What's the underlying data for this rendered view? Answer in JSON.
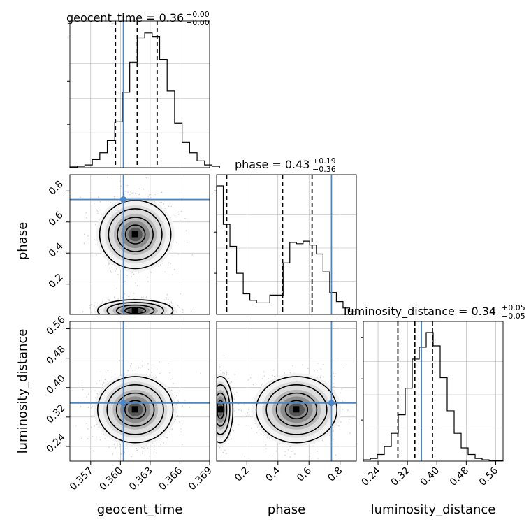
{
  "chart_data": {
    "type": "corner",
    "parameters": [
      "geocent_time",
      "phase",
      "luminosity_distance"
    ],
    "truth": {
      "geocent_time": 0.3603,
      "phase": 0.745,
      "luminosity_distance": 0.358
    },
    "colors": {
      "truth": "#4c86c6",
      "hist": "#000000",
      "grid": "#b0b0b0",
      "scatter": "#b3b3b3"
    },
    "grid": true,
    "titles": [
      {
        "param": "geocent_time",
        "main": "geocent_time = 0.36",
        "sup": "+0.00",
        "sub": "−0.00"
      },
      {
        "param": "phase",
        "main": "phase = 0.43",
        "sup": "+0.19",
        "sub": "−0.36"
      },
      {
        "param": "luminosity_distance",
        "main": "luminosity_distance = 0.34",
        "sup": "+0.05",
        "sub": "−0.05"
      }
    ],
    "axis_labels": {
      "x": [
        "geocent_time",
        "phase",
        "luminosity_distance"
      ],
      "y": [
        "phase",
        "luminosity_distance"
      ]
    },
    "ranges": {
      "geocent_time": [
        0.3549,
        0.369
      ],
      "phase": [
        0.005,
        0.905
      ],
      "luminosity_distance": [
        0.2,
        0.58
      ]
    },
    "ticks": {
      "geocent_time": [
        "0.357",
        "0.360",
        "0.363",
        "0.366",
        "0.369"
      ],
      "phase": [
        "0.2",
        "0.4",
        "0.6",
        "0.8"
      ],
      "luminosity_distance": [
        "0.24",
        "0.32",
        "0.40",
        "0.48",
        "0.56"
      ]
    },
    "quantiles": {
      "geocent_time": [
        0.3595,
        0.3617,
        0.3637
      ],
      "phase": [
        0.07,
        0.43,
        0.62
      ],
      "luminosity_distance": [
        0.294,
        0.34,
        0.388
      ]
    },
    "marginals": {
      "geocent_time": {
        "edges": [
          0.3549,
          0.37
        ],
        "counts": [
          0.5,
          1,
          2,
          6,
          11,
          20,
          34,
          56,
          78,
          96,
          100,
          97,
          80,
          57,
          33,
          19,
          11,
          5,
          2,
          1
        ]
      },
      "phase": {
        "edges": [
          0.005,
          0.905
        ],
        "counts": [
          100,
          70,
          53,
          32,
          16,
          11,
          9,
          9,
          15,
          15,
          40,
          56,
          55,
          57,
          54,
          47,
          33,
          17,
          10,
          5,
          2
        ]
      },
      "luminosity_distance": {
        "edges": [
          0.2,
          0.58
        ],
        "counts": [
          1,
          2,
          5,
          11,
          21,
          35,
          55,
          77,
          86,
          97,
          87,
          63,
          38,
          21,
          10,
          5,
          2,
          1,
          0.5,
          0.3
        ]
      }
    }
  }
}
